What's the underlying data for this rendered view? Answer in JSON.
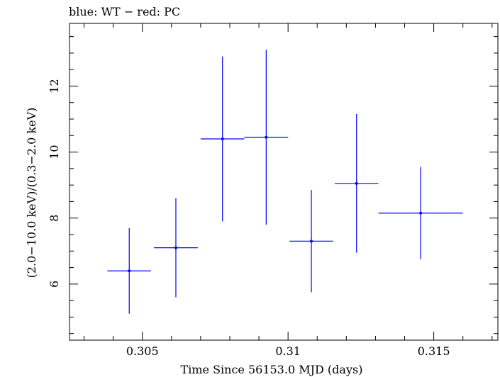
{
  "chart_data": {
    "type": "scatter",
    "title": "blue: WT − red: PC",
    "xlabel": "Time Since 56153.0 MJD (days)",
    "ylabel": "(2.0−10.0 keV)/(0.3−2.0 keV)",
    "xlim": [
      0.3025,
      0.3172
    ],
    "ylim": [
      4.3,
      13.9
    ],
    "x_ticks": [
      0.305,
      0.31,
      0.315
    ],
    "x_tick_labels": [
      "0.305",
      "0.31",
      "0.315"
    ],
    "y_ticks": [
      6,
      8,
      10,
      12
    ],
    "y_tick_labels": [
      "6",
      "8",
      "10",
      "12"
    ],
    "x_minor_step": 0.001,
    "y_minor_step": 0.5,
    "grid": false,
    "series": [
      {
        "color": "#0000ff",
        "points": [
          {
            "x": 0.30455,
            "xerr": 0.00075,
            "y": 6.4,
            "yerr_low": 1.3,
            "yerr_high": 1.3
          },
          {
            "x": 0.30615,
            "xerr": 0.00075,
            "y": 7.1,
            "yerr_low": 1.5,
            "yerr_high": 1.5
          },
          {
            "x": 0.30775,
            "xerr": 0.00075,
            "y": 10.4,
            "yerr_low": 2.5,
            "yerr_high": 2.5
          },
          {
            "x": 0.30925,
            "xerr": 0.00075,
            "y": 10.45,
            "yerr_low": 2.65,
            "yerr_high": 2.65
          },
          {
            "x": 0.3108,
            "xerr": 0.00075,
            "y": 7.3,
            "yerr_low": 1.55,
            "yerr_high": 1.55
          },
          {
            "x": 0.31235,
            "xerr": 0.00075,
            "y": 9.05,
            "yerr_low": 2.1,
            "yerr_high": 2.1
          },
          {
            "x": 0.31455,
            "xerr": 0.00145,
            "y": 8.15,
            "yerr_low": 1.4,
            "yerr_high": 1.4
          }
        ]
      }
    ]
  }
}
